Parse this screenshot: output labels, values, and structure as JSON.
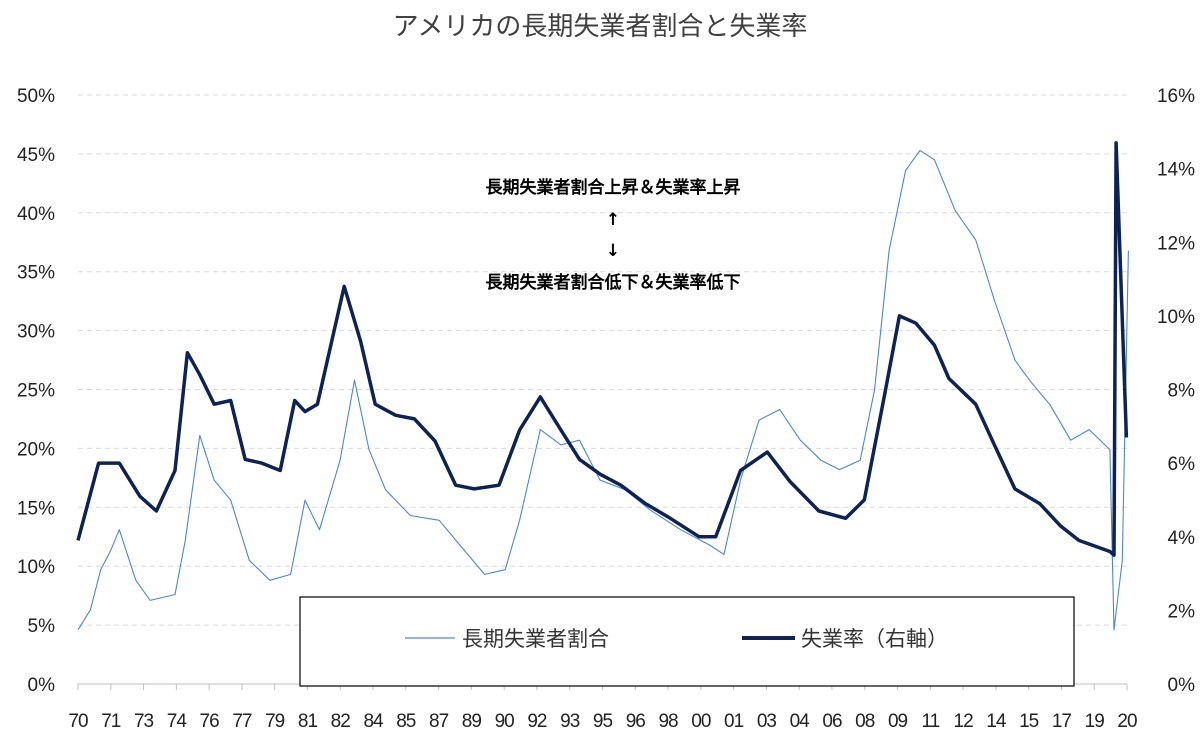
{
  "chart_data": {
    "type": "line",
    "title": "アメリカの長期失業者割合と失業率",
    "x_tick_labels": [
      "70",
      "71",
      "73",
      "74",
      "76",
      "77",
      "79",
      "81",
      "82",
      "84",
      "85",
      "87",
      "89",
      "90",
      "92",
      "93",
      "95",
      "96",
      "98",
      "00",
      "01",
      "03",
      "04",
      "06",
      "08",
      "09",
      "11",
      "12",
      "14",
      "15",
      "17",
      "19",
      "20"
    ],
    "xlim": [
      1970.0,
      2020.83
    ],
    "y_left": {
      "ylim": [
        0,
        50
      ],
      "ticks": [
        0,
        5,
        10,
        15,
        20,
        25,
        30,
        35,
        40,
        45,
        50
      ],
      "tick_labels": [
        "0%",
        "5%",
        "10%",
        "15%",
        "20%",
        "25%",
        "30%",
        "35%",
        "40%",
        "45%",
        "50%"
      ]
    },
    "y_right": {
      "ylim": [
        0,
        16
      ],
      "ticks": [
        0,
        2,
        4,
        6,
        8,
        10,
        12,
        14,
        16
      ],
      "tick_labels": [
        "0%",
        "2%",
        "4%",
        "6%",
        "8%",
        "10%",
        "12%",
        "14%",
        "16%"
      ]
    },
    "grid": "horizontal dashed",
    "legend_placement": "bottom-center",
    "annotation": {
      "line1": "長期失業者割合上昇＆失業率上昇",
      "arrow_up": "↑",
      "arrow_down": "↓",
      "line2": "長期失業者割合低下＆失業率低下"
    },
    "series": [
      {
        "name": "長期失業者割合",
        "axis": "left",
        "color": "#4a86d8",
        "style": "thin",
        "points": [
          [
            1970.0,
            4.6
          ],
          [
            1970.6,
            6.3
          ],
          [
            1971.1,
            9.7
          ],
          [
            1971.6,
            11.4
          ],
          [
            1972.0,
            13.1
          ],
          [
            1972.8,
            8.8
          ],
          [
            1973.5,
            7.1
          ],
          [
            1974.7,
            7.6
          ],
          [
            1975.2,
            12.2
          ],
          [
            1975.9,
            21.1
          ],
          [
            1976.6,
            17.3
          ],
          [
            1977.4,
            15.6
          ],
          [
            1978.3,
            10.5
          ],
          [
            1979.3,
            8.8
          ],
          [
            1980.3,
            9.3
          ],
          [
            1981.0,
            15.6
          ],
          [
            1981.7,
            13.1
          ],
          [
            1982.7,
            19.0
          ],
          [
            1983.4,
            25.8
          ],
          [
            1984.1,
            19.9
          ],
          [
            1984.9,
            16.5
          ],
          [
            1986.1,
            14.3
          ],
          [
            1987.5,
            13.9
          ],
          [
            1988.5,
            11.8
          ],
          [
            1989.7,
            9.3
          ],
          [
            1990.7,
            9.7
          ],
          [
            1991.4,
            13.9
          ],
          [
            1992.4,
            21.6
          ],
          [
            1993.4,
            20.3
          ],
          [
            1994.3,
            20.7
          ],
          [
            1995.3,
            17.3
          ],
          [
            1996.5,
            16.5
          ],
          [
            1997.7,
            14.8
          ],
          [
            1999.2,
            13.1
          ],
          [
            2000.6,
            11.8
          ],
          [
            2001.3,
            11.0
          ],
          [
            2002.1,
            17.3
          ],
          [
            2003.0,
            22.4
          ],
          [
            2004.0,
            23.3
          ],
          [
            2005.0,
            20.7
          ],
          [
            2006.0,
            19.0
          ],
          [
            2006.9,
            18.2
          ],
          [
            2007.9,
            19.0
          ],
          [
            2008.6,
            25.0
          ],
          [
            2009.3,
            36.8
          ],
          [
            2010.1,
            43.6
          ],
          [
            2010.8,
            45.3
          ],
          [
            2011.5,
            44.5
          ],
          [
            2012.5,
            40.2
          ],
          [
            2013.5,
            37.7
          ],
          [
            2014.4,
            32.6
          ],
          [
            2015.4,
            27.5
          ],
          [
            2016.1,
            25.8
          ],
          [
            2017.1,
            23.7
          ],
          [
            2018.1,
            20.7
          ],
          [
            2019.0,
            21.6
          ],
          [
            2020.0,
            19.9
          ],
          [
            2020.2,
            4.6
          ],
          [
            2020.6,
            10.5
          ],
          [
            2020.9,
            36.8
          ]
        ]
      },
      {
        "name": "失業率（右軸）",
        "axis": "right",
        "color": "#0d2356",
        "style": "thick",
        "points": [
          [
            1970.0,
            3.9
          ],
          [
            1971.0,
            6.0
          ],
          [
            1972.0,
            6.0
          ],
          [
            1973.0,
            5.1
          ],
          [
            1973.8,
            4.7
          ],
          [
            1974.7,
            5.8
          ],
          [
            1975.3,
            9.0
          ],
          [
            1975.9,
            8.4
          ],
          [
            1976.6,
            7.6
          ],
          [
            1977.4,
            7.7
          ],
          [
            1978.1,
            6.1
          ],
          [
            1978.9,
            6.0
          ],
          [
            1979.8,
            5.8
          ],
          [
            1980.5,
            7.7
          ],
          [
            1981.0,
            7.4
          ],
          [
            1981.6,
            7.6
          ],
          [
            1982.9,
            10.8
          ],
          [
            1983.7,
            9.3
          ],
          [
            1984.4,
            7.6
          ],
          [
            1985.4,
            7.3
          ],
          [
            1986.3,
            7.2
          ],
          [
            1987.3,
            6.6
          ],
          [
            1988.3,
            5.4
          ],
          [
            1989.2,
            5.3
          ],
          [
            1990.4,
            5.4
          ],
          [
            1991.4,
            6.9
          ],
          [
            1992.4,
            7.8
          ],
          [
            1993.4,
            6.9
          ],
          [
            1994.3,
            6.1
          ],
          [
            1995.3,
            5.7
          ],
          [
            1996.3,
            5.4
          ],
          [
            1997.5,
            4.9
          ],
          [
            1998.7,
            4.5
          ],
          [
            2000.1,
            4.0
          ],
          [
            2000.9,
            4.0
          ],
          [
            2002.1,
            5.8
          ],
          [
            2003.4,
            6.3
          ],
          [
            2004.5,
            5.5
          ],
          [
            2005.9,
            4.7
          ],
          [
            2007.2,
            4.5
          ],
          [
            2008.1,
            5.0
          ],
          [
            2009.1,
            7.9
          ],
          [
            2009.8,
            10.0
          ],
          [
            2010.6,
            9.8
          ],
          [
            2011.5,
            9.2
          ],
          [
            2012.2,
            8.3
          ],
          [
            2013.5,
            7.6
          ],
          [
            2014.4,
            6.5
          ],
          [
            2015.4,
            5.3
          ],
          [
            2016.6,
            4.9
          ],
          [
            2017.6,
            4.3
          ],
          [
            2018.5,
            3.9
          ],
          [
            2020.0,
            3.6
          ],
          [
            2020.2,
            3.5
          ],
          [
            2020.3,
            14.7
          ],
          [
            2020.8,
            6.7
          ]
        ]
      }
    ]
  }
}
